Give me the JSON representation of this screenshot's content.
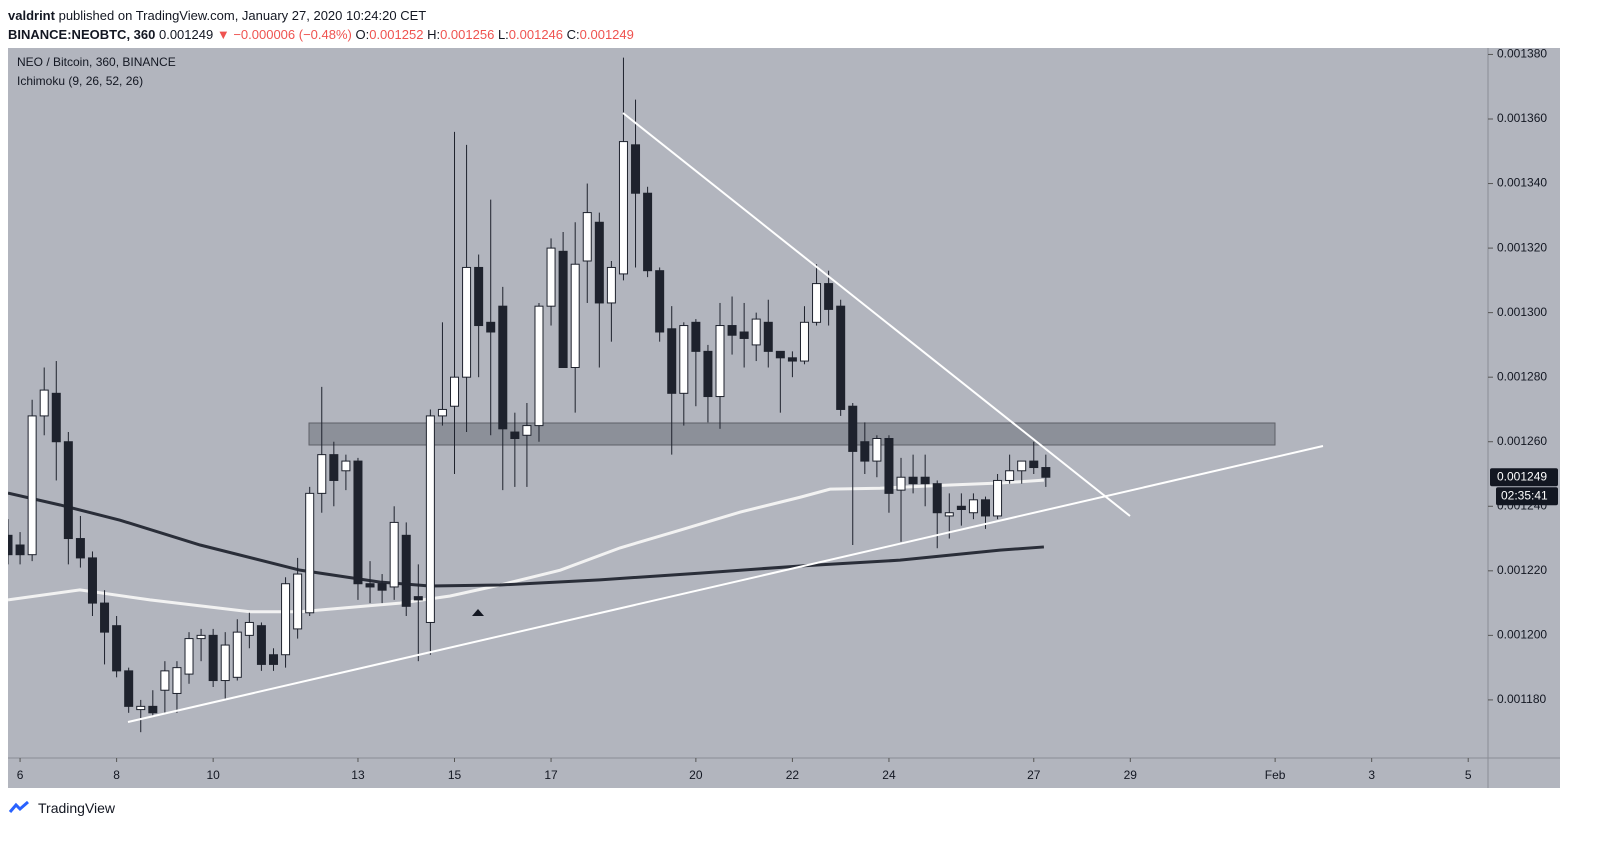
{
  "header": {
    "author": "valdrint",
    "published": "published on TradingView.com, January 27, 2020 10:24:20 CET",
    "symbol": "BINANCE:NEOBTC, 360",
    "last": "0.001249",
    "change": "▼ −0.000006 (−0.48%)",
    "ohlc": [
      {
        "label": "O:",
        "value": "0.001252"
      },
      {
        "label": "H:",
        "value": "0.001256"
      },
      {
        "label": "L:",
        "value": "0.001246"
      },
      {
        "label": "C:",
        "value": "0.001249"
      }
    ]
  },
  "chart_data": {
    "type": "candlestick",
    "title": "NEO / Bitcoin, 360, BINANCE",
    "subtitle": "Ichimoku (9, 26, 52, 26)",
    "x": [
      5.75,
      6,
      6.25,
      6.5,
      6.75,
      7,
      7.25,
      7.5,
      7.75,
      8,
      8.25,
      8.5,
      8.75,
      9,
      9.25,
      9.5,
      9.75,
      10,
      10.25,
      10.5,
      10.75,
      11,
      11.25,
      11.5,
      11.75,
      12,
      12.25,
      12.5,
      12.75,
      13,
      13.25,
      13.5,
      13.75,
      14,
      14.25,
      14.5,
      14.75,
      15,
      15.25,
      15.5,
      15.75,
      16,
      16.25,
      16.5,
      16.75,
      17,
      17.25,
      17.5,
      17.75,
      18,
      18.25,
      18.5,
      18.75,
      19,
      19.25,
      19.5,
      19.75,
      20,
      20.25,
      20.5,
      20.75,
      21,
      21.25,
      21.5,
      21.75,
      22,
      22.25,
      22.5,
      22.75,
      23,
      23.25,
      23.5,
      23.75,
      24,
      24.25,
      24.5,
      24.75,
      25,
      25.25,
      25.5,
      25.75,
      26,
      26.25,
      26.5,
      26.75,
      27,
      27.25
    ],
    "open": [
      0.001231,
      0.001228,
      0.001225,
      0.001268,
      0.001275,
      0.00126,
      0.00123,
      0.001224,
      0.00121,
      0.001203,
      0.001189,
      0.001177,
      0.001178,
      0.001183,
      0.001182,
      0.001188,
      0.001199,
      0.0012,
      0.001186,
      0.001187,
      0.0012,
      0.001203,
      0.001194,
      0.001194,
      0.001202,
      0.001207,
      0.001244,
      0.001256,
      0.001251,
      0.001254,
      0.001216,
      0.001216,
      0.001215,
      0.001231,
      0.001212,
      0.001204,
      0.001268,
      0.001271,
      0.00128,
      0.001314,
      0.001297,
      0.001302,
      0.001263,
      0.001262,
      0.001265,
      0.001302,
      0.001319,
      0.001283,
      0.001316,
      0.001328,
      0.001303,
      0.001312,
      0.001352,
      0.001337,
      0.001313,
      0.001295,
      0.001275,
      0.001297,
      0.001288,
      0.001274,
      0.001296,
      0.001294,
      0.00129,
      0.001297,
      0.001288,
      0.001286,
      0.001285,
      0.001297,
      0.001309,
      0.001302,
      0.001271,
      0.00126,
      0.001254,
      0.001261,
      0.001245,
      0.001249,
      0.001249,
      0.001247,
      0.001237,
      0.00124,
      0.001238,
      0.001242,
      0.001237,
      0.001248,
      0.001251,
      0.001254,
      0.001252
    ],
    "high": [
      0.001236,
      0.001232,
      0.001273,
      0.001283,
      0.001285,
      0.001263,
      0.001237,
      0.001226,
      0.001214,
      0.001206,
      0.00119,
      0.00118,
      0.001183,
      0.001192,
      0.001192,
      0.001201,
      0.001202,
      0.001202,
      0.001201,
      0.001205,
      0.001207,
      0.001204,
      0.001196,
      0.001218,
      0.001224,
      0.001246,
      0.001277,
      0.00126,
      0.001256,
      0.001255,
      0.001223,
      0.001219,
      0.00124,
      0.001235,
      0.001222,
      0.00127,
      0.001297,
      0.001356,
      0.001352,
      0.001318,
      0.001335,
      0.001308,
      0.001269,
      0.001272,
      0.001303,
      0.001323,
      0.001325,
      0.001328,
      0.00134,
      0.001331,
      0.001316,
      0.001379,
      0.001366,
      0.001339,
      0.001314,
      0.001302,
      0.001297,
      0.001298,
      0.00129,
      0.001303,
      0.001305,
      0.001303,
      0.0013,
      0.001304,
      0.001288,
      0.001288,
      0.001302,
      0.001315,
      0.001313,
      0.001304,
      0.001272,
      0.001266,
      0.001262,
      0.001262,
      0.001255,
      0.001256,
      0.001256,
      0.001248,
      0.001244,
      0.001244,
      0.001244,
      0.001243,
      0.00125,
      0.001256,
      0.001254,
      0.00126,
      0.001256
    ],
    "low": [
      0.001222,
      0.001222,
      0.001223,
      0.001262,
      0.001248,
      0.001222,
      0.001221,
      0.001206,
      0.001191,
      0.001187,
      0.001176,
      0.00117,
      0.001175,
      0.001176,
      0.001176,
      0.001185,
      0.001192,
      0.001184,
      0.00118,
      0.001186,
      0.001196,
      0.001189,
      0.001189,
      0.00119,
      0.001199,
      0.001206,
      0.001238,
      0.00124,
      0.001245,
      0.001211,
      0.00121,
      0.00121,
      0.001211,
      0.001206,
      0.001192,
      0.001194,
      0.001265,
      0.00125,
      0.001263,
      0.00128,
      0.001262,
      0.001245,
      0.001246,
      0.001246,
      0.00126,
      0.001296,
      0.001283,
      0.001269,
      0.001303,
      0.001283,
      0.001291,
      0.00131,
      0.001314,
      0.001311,
      0.001291,
      0.001256,
      0.001265,
      0.001271,
      0.001266,
      0.001264,
      0.001287,
      0.001283,
      0.001285,
      0.001283,
      0.001269,
      0.00128,
      0.001284,
      0.001296,
      0.001296,
      0.001268,
      0.001228,
      0.00125,
      0.001249,
      0.001238,
      0.001229,
      0.001244,
      0.00124,
      0.001227,
      0.00123,
      0.001234,
      0.001236,
      0.001233,
      0.001236,
      0.001247,
      0.001247,
      0.00125,
      0.001246
    ],
    "close": [
      0.001225,
      0.001225,
      0.001268,
      0.001276,
      0.00126,
      0.00123,
      0.001224,
      0.00121,
      0.001201,
      0.001189,
      0.001178,
      0.001178,
      0.001176,
      0.001189,
      0.00119,
      0.001199,
      0.0012,
      0.001186,
      0.001197,
      0.001201,
      0.001204,
      0.001191,
      0.001191,
      0.001216,
      0.001219,
      0.001244,
      0.001256,
      0.001248,
      0.001254,
      0.001216,
      0.001215,
      0.001214,
      0.001235,
      0.001209,
      0.001211,
      0.001268,
      0.00127,
      0.00128,
      0.001314,
      0.001296,
      0.001294,
      0.001264,
      0.001261,
      0.001265,
      0.001302,
      0.00132,
      0.001283,
      0.001315,
      0.001331,
      0.001303,
      0.001314,
      0.001353,
      0.001337,
      0.001313,
      0.001294,
      0.001275,
      0.001296,
      0.001288,
      0.001274,
      0.001296,
      0.001293,
      0.001292,
      0.001298,
      0.001288,
      0.001286,
      0.001285,
      0.001297,
      0.001309,
      0.001301,
      0.00127,
      0.001257,
      0.001254,
      0.001261,
      0.001244,
      0.001249,
      0.001247,
      0.001247,
      0.001238,
      0.001238,
      0.001239,
      0.001242,
      0.001237,
      0.001248,
      0.001251,
      0.001254,
      0.001252,
      0.001249
    ],
    "up_color": "#ffffff",
    "down_color": "#1e222d",
    "lines": [
      {
        "color": "#f2f2f2",
        "x": [
          5.75,
          7.24,
          8.69,
          10.76,
          11.8,
          13.87,
          14.91,
          15.94,
          17.19,
          18.43,
          19.67,
          20.92,
          22.16,
          22.78,
          23.82,
          25.27,
          26.3,
          27.21
        ],
        "values": [
          0.001211,
          0.0012141,
          0.001211,
          0.0012073,
          0.0012073,
          0.00121,
          0.0012122,
          0.0012156,
          0.0012202,
          0.0012271,
          0.0012326,
          0.0012382,
          0.0012428,
          0.0012453,
          0.0012456,
          0.0012466,
          0.0012472,
          0.0012481
        ]
      },
      {
        "color": "#2a2e39",
        "x": [
          5.75,
          6.83,
          8.07,
          9.73,
          11.8,
          13.46,
          14.49,
          15.94,
          18.01,
          20.09,
          22.16,
          24.23,
          26.3,
          27.21
        ],
        "values": [
          0.0012441,
          0.0012404,
          0.0012357,
          0.001228,
          0.0012202,
          0.0012165,
          0.0012153,
          0.0012156,
          0.0012172,
          0.0012193,
          0.0012215,
          0.0012233,
          0.0012264,
          0.0012274
        ]
      }
    ],
    "xlim": [
      5.75,
      36.41
    ],
    "xticks": [
      6,
      8,
      10,
      13,
      15,
      17,
      20,
      22,
      24,
      27,
      29,
      {
        "value": 32,
        "label": "Feb"
      },
      {
        "value": 34,
        "label": "3"
      },
      {
        "value": 36,
        "label": "5"
      }
    ],
    "ylim": [
      0.001162,
      0.001382
    ],
    "yticks": [
      {
        "value": 0.00118,
        "label": "0.001180"
      },
      {
        "value": 0.0012,
        "label": "0.001200"
      },
      {
        "value": 0.00122,
        "label": "0.001220"
      },
      {
        "value": 0.00124,
        "label": "0.001240"
      },
      {
        "value": 0.00126,
        "label": "0.001260"
      },
      {
        "value": 0.00128,
        "label": "0.001280"
      },
      {
        "value": 0.0013,
        "label": "0.001300"
      },
      {
        "value": 0.00132,
        "label": "0.001320"
      },
      {
        "value": 0.00134,
        "label": "0.001340"
      },
      {
        "value": 0.00136,
        "label": "0.001360"
      },
      {
        "value": 0.00138,
        "label": "0.001380"
      }
    ],
    "grid": false,
    "last_price": {
      "value": 0.001249,
      "label": "0.001249"
    },
    "countdown": "02:35:41"
  },
  "footer": {
    "brand": "TradingView"
  }
}
